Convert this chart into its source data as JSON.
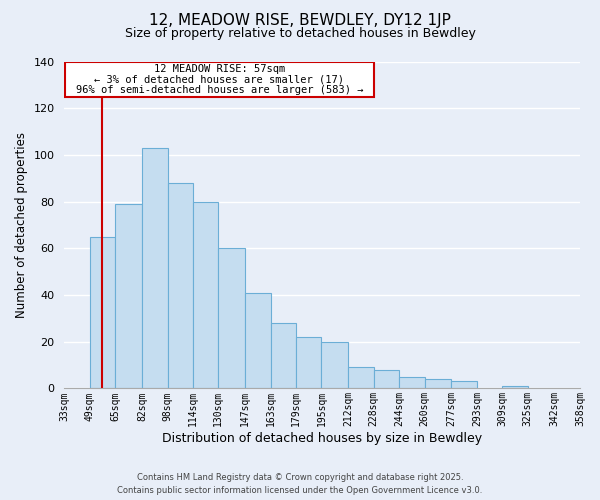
{
  "title": "12, MEADOW RISE, BEWDLEY, DY12 1JP",
  "subtitle": "Size of property relative to detached houses in Bewdley",
  "xlabel": "Distribution of detached houses by size in Bewdley",
  "ylabel": "Number of detached properties",
  "bar_color": "#c5ddf0",
  "bar_edge_color": "#6baed6",
  "background_color": "#e8eef8",
  "grid_color": "#ffffff",
  "bins": [
    33,
    49,
    65,
    82,
    98,
    114,
    130,
    147,
    163,
    179,
    195,
    212,
    228,
    244,
    260,
    277,
    293,
    309,
    325,
    342,
    358
  ],
  "bin_labels": [
    "33sqm",
    "49sqm",
    "65sqm",
    "82sqm",
    "98sqm",
    "114sqm",
    "130sqm",
    "147sqm",
    "163sqm",
    "179sqm",
    "195sqm",
    "212sqm",
    "228sqm",
    "244sqm",
    "260sqm",
    "277sqm",
    "293sqm",
    "309sqm",
    "325sqm",
    "342sqm",
    "358sqm"
  ],
  "values": [
    0,
    65,
    79,
    103,
    88,
    80,
    60,
    41,
    28,
    22,
    20,
    9,
    8,
    5,
    4,
    3,
    0,
    1,
    0,
    0,
    0
  ],
  "ylim": [
    0,
    140
  ],
  "yticks": [
    0,
    20,
    40,
    60,
    80,
    100,
    120,
    140
  ],
  "property_line_x": 57,
  "property_line_label": "12 MEADOW RISE: 57sqm",
  "annotation_line1": "← 3% of detached houses are smaller (17)",
  "annotation_line2": "96% of semi-detached houses are larger (583) →",
  "footer_line1": "Contains HM Land Registry data © Crown copyright and database right 2025.",
  "footer_line2": "Contains public sector information licensed under the Open Government Licence v3.0."
}
